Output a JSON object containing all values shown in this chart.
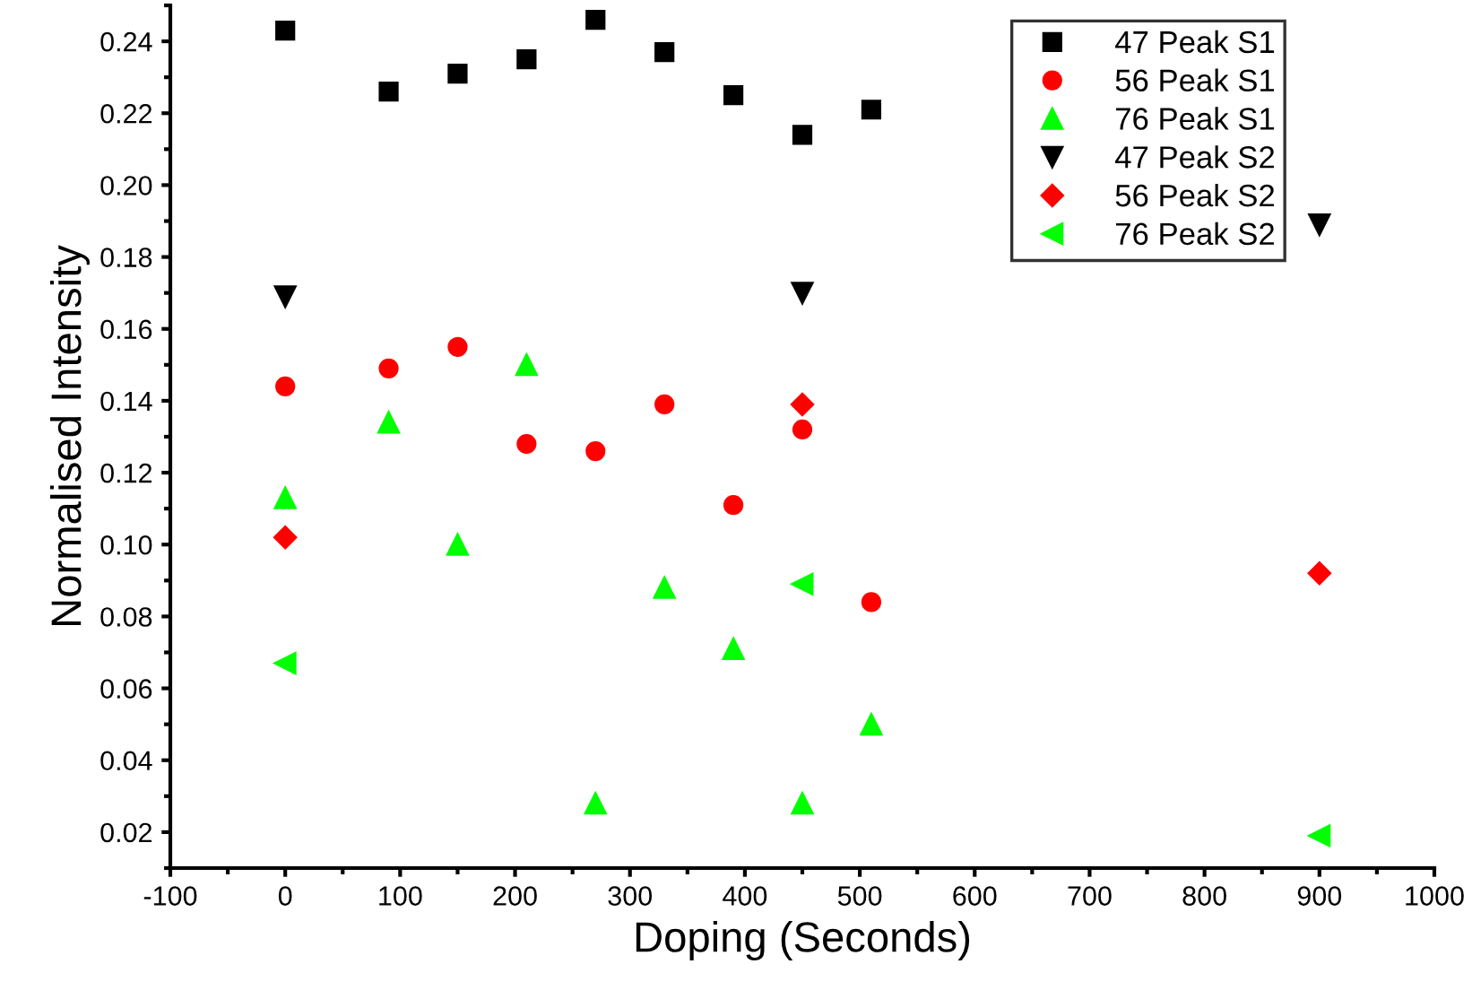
{
  "chart_data": {
    "type": "scatter",
    "xlabel": "Doping (Seconds)",
    "ylabel": "Normalised Intensity",
    "xlim": [
      -100,
      1000
    ],
    "ylim": [
      0.01,
      0.25
    ],
    "xticks": [
      -100,
      {
        "value": -50,
        "label": null
      },
      0,
      {
        "value": 50,
        "label": null
      },
      100,
      {
        "value": 150,
        "label": null
      },
      200,
      {
        "value": 250,
        "label": null
      },
      300,
      {
        "value": 350,
        "label": null
      },
      400,
      {
        "value": 450,
        "label": null
      },
      500,
      {
        "value": 550,
        "label": null
      },
      600,
      {
        "value": 650,
        "label": null
      },
      700,
      {
        "value": 750,
        "label": null
      },
      800,
      {
        "value": 850,
        "label": null
      },
      900,
      {
        "value": 950,
        "label": null
      },
      1000
    ],
    "yticks": [
      {
        "value": 0.01,
        "label": null
      },
      0.02,
      {
        "value": 0.03,
        "label": null
      },
      0.04,
      {
        "value": 0.05,
        "label": null
      },
      0.06,
      {
        "value": 0.07,
        "label": null
      },
      0.08,
      {
        "value": 0.09,
        "label": null
      },
      {
        "value": 0.1,
        "label": "0.10"
      },
      {
        "value": 0.11,
        "label": null
      },
      0.12,
      {
        "value": 0.13,
        "label": null
      },
      0.14,
      {
        "value": 0.15,
        "label": null
      },
      0.16,
      {
        "value": 0.17,
        "label": null
      },
      0.18,
      {
        "value": 0.19,
        "label": null
      },
      {
        "value": 0.2,
        "label": "0.20"
      },
      {
        "value": 0.21,
        "label": null
      },
      0.22,
      {
        "value": 0.23,
        "label": null
      },
      0.24,
      {
        "value": 0.25,
        "label": null
      }
    ],
    "grid": false,
    "legend": "top right",
    "series": [
      {
        "name": "47 Peak S1",
        "color": "#000000",
        "marker": "square",
        "x": [
          0,
          90,
          150,
          210,
          270,
          330,
          390,
          450,
          510
        ],
        "values": [
          0.243,
          0.226,
          0.231,
          0.235,
          0.246,
          0.237,
          0.225,
          0.214,
          0.221
        ]
      },
      {
        "name": "56 Peak S1",
        "color": "#ff0000",
        "marker": "circle",
        "x": [
          0,
          90,
          150,
          210,
          270,
          330,
          390,
          450,
          510
        ],
        "values": [
          0.144,
          0.149,
          0.155,
          0.128,
          0.126,
          0.139,
          0.111,
          0.132,
          0.084
        ]
      },
      {
        "name": "76 Peak S1",
        "color": "#00ff00",
        "marker": "triangle",
        "x": [
          0,
          90,
          150,
          210,
          270,
          330,
          390,
          450,
          510
        ],
        "values": [
          0.113,
          0.134,
          0.1,
          0.15,
          0.028,
          0.088,
          0.071,
          0.028,
          0.05
        ]
      },
      {
        "name": "47 Peak S2",
        "color": "#000000",
        "marker": "triangle_down",
        "x": [
          0,
          450,
          900
        ],
        "values": [
          0.169,
          0.17,
          0.189
        ]
      },
      {
        "name": "56 Peak S2",
        "color": "#ff0000",
        "marker": "diamond",
        "x": [
          0,
          450,
          900
        ],
        "values": [
          0.102,
          0.139,
          0.092
        ]
      },
      {
        "name": "76 Peak S2",
        "color": "#00ff00",
        "marker": "triangle_left",
        "x": [
          0,
          450,
          900
        ],
        "values": [
          0.067,
          0.089,
          0.019
        ]
      }
    ]
  }
}
